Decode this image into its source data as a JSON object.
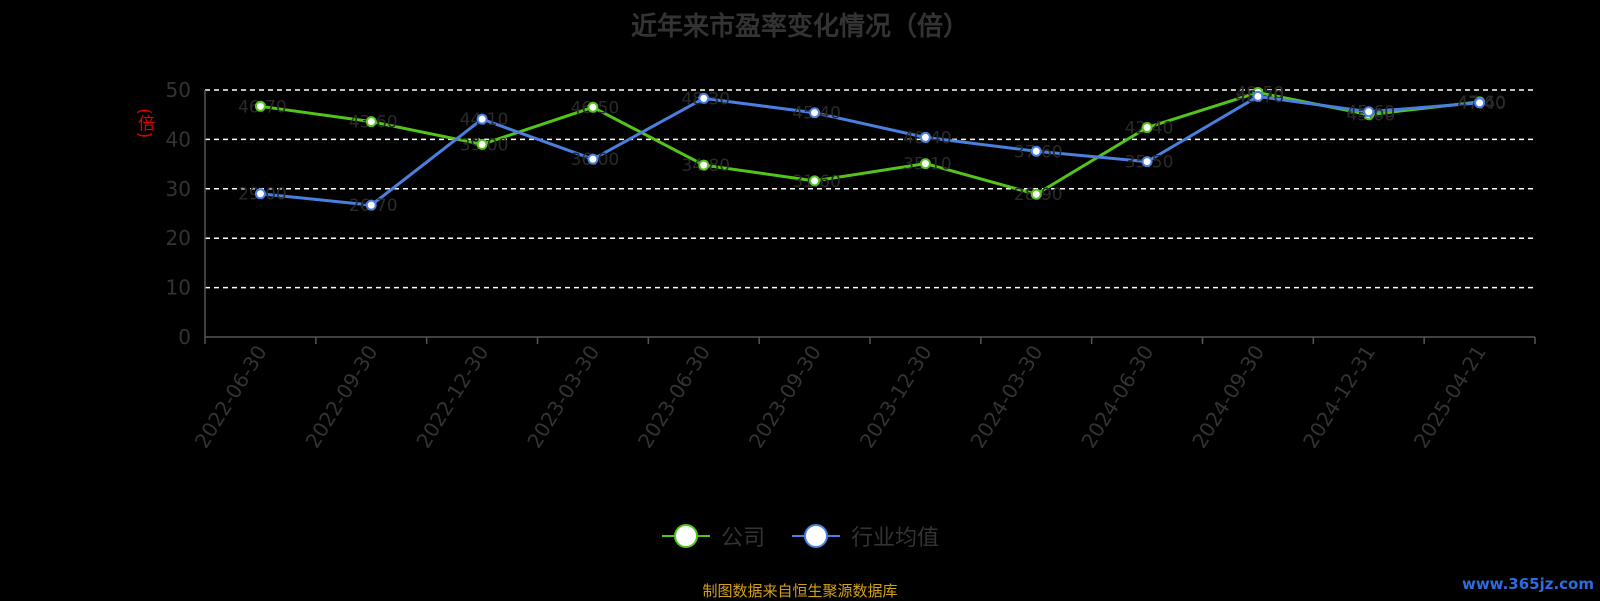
{
  "title": "近年来市盈率变化情况（倍）",
  "unit_label": "(倍)",
  "source_note": "制图数据来自恒生聚源数据库",
  "watermark": "www.365jz.com",
  "colors": {
    "background": "#000000",
    "company": "#52c41a",
    "industry": "#4a7fe0",
    "grid": "#ffffff",
    "axis": "#555555",
    "tick_text": "#333333",
    "unit_text": "#e00000",
    "source_text": "#d4a017",
    "watermark": "#2d6cdf"
  },
  "chart_data": {
    "type": "line",
    "title": "近年来市盈率变化情况（倍）",
    "ylabel": "(倍)",
    "ylim": [
      0,
      50
    ],
    "yticks": [
      0,
      10,
      20,
      30,
      40,
      50
    ],
    "grid": true,
    "legend_position": "bottom",
    "categories": [
      "2022-06-30",
      "2022-09-30",
      "2022-12-30",
      "2023-03-30",
      "2023-06-30",
      "2023-09-30",
      "2023-12-30",
      "2024-03-30",
      "2024-06-30",
      "2024-09-30",
      "2024-12-31",
      "2025-04-21"
    ],
    "series": [
      {
        "name": "公司",
        "color": "#52c41a",
        "values": [
          46.7,
          43.6,
          39.0,
          46.5,
          34.8,
          31.6,
          35.1,
          28.9,
          42.4,
          49.5,
          45.0,
          47.6
        ]
      },
      {
        "name": "行业均值",
        "color": "#4a7fe0",
        "values": [
          29.0,
          26.7,
          44.1,
          36.0,
          48.3,
          45.4,
          40.4,
          37.6,
          35.5,
          48.7,
          45.6,
          47.4
        ]
      }
    ]
  }
}
